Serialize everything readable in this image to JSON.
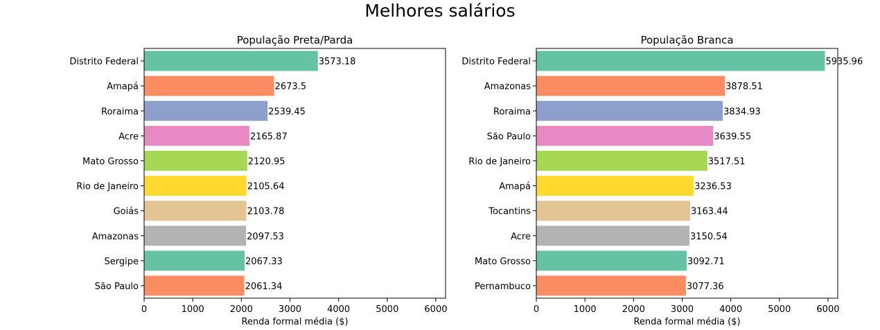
{
  "figure": {
    "suptitle": "Melhores salários"
  },
  "chart_data": [
    {
      "type": "bar",
      "orientation": "horizontal",
      "title": "População Preta/Parda",
      "xlabel": "Renda formal média ($)",
      "ylabel": "",
      "xlim": [
        0,
        6200
      ],
      "xticks": [
        0,
        1000,
        2000,
        3000,
        4000,
        5000,
        6000
      ],
      "categories": [
        "Distrito Federal",
        "Amapá",
        "Roraima",
        "Acre",
        "Mato Grosso",
        "Rio de Janeiro",
        "Goiás",
        "Amazonas",
        "Sergipe",
        "São Paulo"
      ],
      "values": [
        3573.18,
        2673.5,
        2539.45,
        2165.87,
        2120.95,
        2105.64,
        2103.78,
        2097.53,
        2067.33,
        2061.34
      ],
      "value_labels": [
        "3573.18",
        "2673.5",
        "2539.45",
        "2165.87",
        "2120.95",
        "2105.64",
        "2103.78",
        "2097.53",
        "2067.33",
        "2061.34"
      ],
      "colors": [
        "#66c2a5",
        "#fc8d62",
        "#8da0cb",
        "#e78ac3",
        "#a6d854",
        "#ffd92f",
        "#e5c494",
        "#b3b3b3",
        "#66c2a5",
        "#fc8d62"
      ],
      "grid": false,
      "legend": "none"
    },
    {
      "type": "bar",
      "orientation": "horizontal",
      "title": "População Branca",
      "xlabel": "Renda formal média ($)",
      "ylabel": "",
      "xlim": [
        0,
        6200
      ],
      "xticks": [
        0,
        1000,
        2000,
        3000,
        4000,
        5000,
        6000
      ],
      "categories": [
        "Distrito Federal",
        "Amazonas",
        "Roraima",
        "São Paulo",
        "Rio de Janeiro",
        "Amapá",
        "Tocantins",
        "Acre",
        "Mato Grosso",
        "Pernambuco"
      ],
      "values": [
        5935.96,
        3878.51,
        3834.93,
        3639.55,
        3517.51,
        3236.53,
        3163.44,
        3150.54,
        3092.71,
        3077.36
      ],
      "value_labels": [
        "5935.96",
        "3878.51",
        "3834.93",
        "3639.55",
        "3517.51",
        "3236.53",
        "3163.44",
        "3150.54",
        "3092.71",
        "3077.36"
      ],
      "colors": [
        "#66c2a5",
        "#fc8d62",
        "#8da0cb",
        "#e78ac3",
        "#a6d854",
        "#ffd92f",
        "#e5c494",
        "#b3b3b3",
        "#66c2a5",
        "#fc8d62"
      ],
      "grid": false,
      "legend": "none"
    }
  ]
}
